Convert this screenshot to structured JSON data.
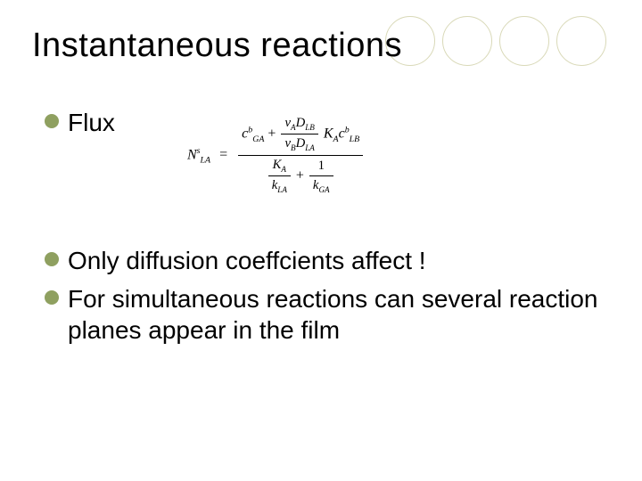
{
  "slide": {
    "title": "Instantaneous reactions",
    "bullets": [
      {
        "text": "Flux"
      },
      {
        "text": "Only diffusion coeffcients affect !"
      },
      {
        "text": "For simultaneous reactions can several reaction planes appear in the film"
      }
    ],
    "bullet_color": "#8fa060",
    "deco_circle_border": "#d9d9b8",
    "title_fontsize": 38,
    "bullet_fontsize": 28,
    "equation": {
      "lhs": {
        "base": "N",
        "sub": "LA",
        "sup": "s"
      },
      "numerator_terms": [
        {
          "base": "c",
          "sub": "GA",
          "sup": "b"
        },
        {
          "plus": "+"
        },
        {
          "inner_frac": {
            "num_left": "ν",
            "num_left_sub": "A",
            "num_right": "D",
            "num_right_sub": "LB",
            "den_left": "ν",
            "den_left_sub": "B",
            "den_right": "D",
            "den_right_sub": "LA"
          }
        },
        {
          "base": "K",
          "sub": "A"
        },
        {
          "base": "c",
          "sub": "LB",
          "sup": "b"
        }
      ],
      "denominator_terms": [
        {
          "inner_frac_simple": {
            "num_base": "K",
            "num_sub": "A",
            "den_base": "k",
            "den_sub": "LA"
          }
        },
        {
          "plus": "+"
        },
        {
          "inner_frac_simple": {
            "num": "1",
            "den_base": "k",
            "den_sub": "GA"
          }
        }
      ]
    }
  }
}
